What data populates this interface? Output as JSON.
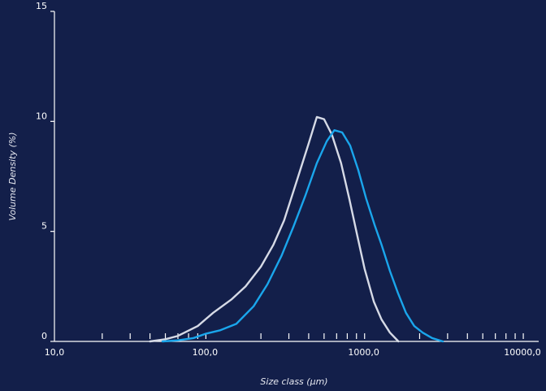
{
  "chart_data": {
    "type": "line",
    "x_label": "Size class (µm)",
    "y_label": "Volume Density (%)",
    "log_x": true,
    "xlim": [
      10,
      10000
    ],
    "xticks": [
      {
        "value": 10,
        "label": "10,0"
      },
      {
        "value": 100,
        "label": "100,0"
      },
      {
        "value": 1000,
        "label": "1000,0"
      },
      {
        "value": 10000,
        "label": "10000,0"
      }
    ],
    "xminorticks": [
      20,
      30,
      40,
      50,
      60,
      70,
      80,
      90,
      200,
      300,
      400,
      500,
      600,
      700,
      800,
      900,
      2000,
      3000,
      4000,
      5000,
      6000,
      7000,
      8000,
      9000
    ],
    "ylim": [
      0,
      15
    ],
    "yticks": [
      0,
      5,
      10,
      15
    ],
    "series": [
      {
        "color": "#d6dae6",
        "x": [
          40,
          50,
          60,
          80,
          100,
          130,
          160,
          200,
          240,
          280,
          340,
          400,
          450,
          500,
          560,
          640,
          720,
          810,
          900,
          1030,
          1150,
          1300,
          1470
        ],
        "values": [
          0,
          0.1,
          0.25,
          0.7,
          1.3,
          1.9,
          2.5,
          3.4,
          4.4,
          5.5,
          7.4,
          9.0,
          10.2,
          10.1,
          9.4,
          8.1,
          6.5,
          4.8,
          3.3,
          1.8,
          1.0,
          0.4,
          0
        ]
      },
      {
        "color": "#1aa6ec",
        "x": [
          48,
          60,
          75,
          90,
          110,
          140,
          180,
          220,
          270,
          320,
          380,
          450,
          520,
          580,
          650,
          730,
          820,
          920,
          1040,
          1150,
          1300,
          1460,
          1640,
          1850,
          2090,
          2400,
          2800
        ],
        "values": [
          0,
          0.05,
          0.15,
          0.35,
          0.5,
          0.8,
          1.6,
          2.6,
          3.9,
          5.2,
          6.6,
          8.1,
          9.1,
          9.6,
          9.5,
          8.9,
          7.8,
          6.5,
          5.3,
          4.4,
          3.2,
          2.2,
          1.3,
          0.7,
          0.4,
          0.15,
          0
        ]
      }
    ]
  }
}
